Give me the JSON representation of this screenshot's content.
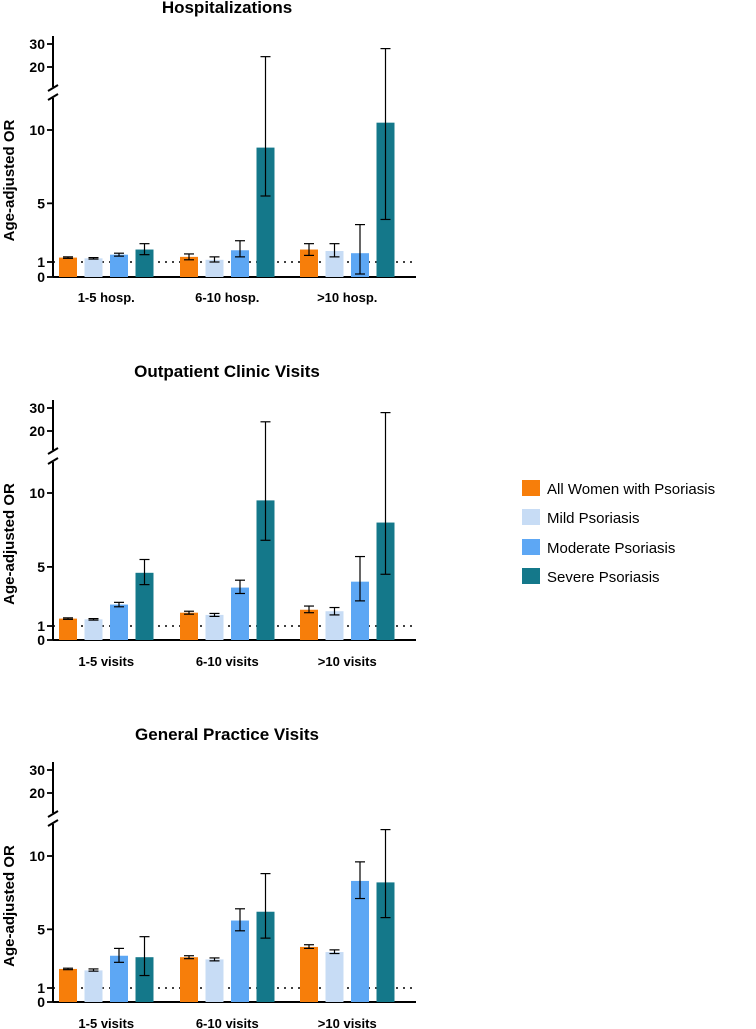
{
  "colors": {
    "all": "#f77e0a",
    "mild": "#c7dcf5",
    "moderate": "#5da7f4",
    "severe": "#14788a"
  },
  "legend": [
    {
      "key": "all",
      "label": "All Women with Psoriasis"
    },
    {
      "key": "mild",
      "label": "Mild Psoriasis"
    },
    {
      "key": "moderate",
      "label": "Moderate Psoriasis"
    },
    {
      "key": "severe",
      "label": "Severe Psoriasis"
    }
  ],
  "chart_data": [
    {
      "type": "bar",
      "title": "Hospitalizations",
      "ylabel": "Age-adjusted OR",
      "ylim": [
        0,
        30
      ],
      "axis_break": [
        12,
        20
      ],
      "yticks": [
        "0",
        "1",
        "5",
        "10",
        "20",
        "30"
      ],
      "reference_line": 1,
      "categories": [
        "1-5 hosp.",
        "6-10 hosp.",
        ">10 hosp."
      ],
      "series": [
        {
          "name": "All Women with Psoriasis",
          "colorKey": "all",
          "values": [
            1.3,
            1.35,
            1.85
          ],
          "err_low": [
            1.25,
            1.15,
            1.45
          ],
          "err_high": [
            1.35,
            1.55,
            2.25
          ]
        },
        {
          "name": "Mild Psoriasis",
          "colorKey": "mild",
          "values": [
            1.25,
            1.15,
            1.75
          ],
          "err_low": [
            1.2,
            1.0,
            1.35
          ],
          "err_high": [
            1.3,
            1.35,
            2.25
          ]
        },
        {
          "name": "Moderate Psoriasis",
          "colorKey": "moderate",
          "values": [
            1.5,
            1.8,
            1.6
          ],
          "err_low": [
            1.4,
            1.35,
            0.2
          ],
          "err_high": [
            1.6,
            2.45,
            3.55
          ]
        },
        {
          "name": "Severe Psoriasis",
          "colorKey": "severe",
          "values": [
            1.85,
            8.8,
            10.5
          ],
          "err_low": [
            1.5,
            5.5,
            3.9
          ],
          "err_high": [
            2.25,
            24.5,
            28.0
          ]
        }
      ]
    },
    {
      "type": "bar",
      "title": "Outpatient Clinic Visits",
      "ylabel": "Age-adjusted OR",
      "ylim": [
        0,
        30
      ],
      "axis_break": [
        12,
        20
      ],
      "yticks": [
        "0",
        "1",
        "5",
        "10",
        "20",
        "30"
      ],
      "reference_line": 1,
      "categories": [
        "1-5 visits",
        "6-10 visits",
        ">10 visits"
      ],
      "series": [
        {
          "name": "All Women with Psoriasis",
          "colorKey": "all",
          "values": [
            1.5,
            1.9,
            2.1
          ],
          "err_low": [
            1.45,
            1.8,
            1.9
          ],
          "err_high": [
            1.55,
            2.0,
            2.35
          ]
        },
        {
          "name": "Mild Psoriasis",
          "colorKey": "mild",
          "values": [
            1.45,
            1.75,
            2.0
          ],
          "err_low": [
            1.4,
            1.65,
            1.75
          ],
          "err_high": [
            1.5,
            1.85,
            2.25
          ]
        },
        {
          "name": "Moderate Psoriasis",
          "colorKey": "moderate",
          "values": [
            2.45,
            3.6,
            4.0
          ],
          "err_low": [
            2.3,
            3.2,
            2.7
          ],
          "err_high": [
            2.6,
            4.1,
            5.7
          ]
        },
        {
          "name": "Severe Psoriasis",
          "colorKey": "severe",
          "values": [
            4.6,
            9.5,
            8.0
          ],
          "err_low": [
            3.8,
            6.8,
            4.5
          ],
          "err_high": [
            5.5,
            24.0,
            28.0
          ]
        }
      ]
    },
    {
      "type": "bar",
      "title": "General Practice Visits",
      "ylabel": "Age-adjusted OR",
      "ylim": [
        0,
        30
      ],
      "axis_break": [
        12,
        20
      ],
      "yticks": [
        "0",
        "1",
        "5",
        "10",
        "20",
        "30"
      ],
      "reference_line": 1,
      "categories": [
        "1-5 visits",
        "6-10 visits",
        ">10 visits"
      ],
      "series": [
        {
          "name": "All Women with Psoriasis",
          "colorKey": "all",
          "values": [
            2.3,
            3.1,
            3.8
          ],
          "err_low": [
            2.25,
            3.0,
            3.7
          ],
          "err_high": [
            2.35,
            3.2,
            3.95
          ]
        },
        {
          "name": "Mild Psoriasis",
          "colorKey": "mild",
          "values": [
            2.2,
            2.95,
            3.45
          ],
          "err_low": [
            2.15,
            2.85,
            3.35
          ],
          "err_high": [
            2.3,
            3.05,
            3.6
          ]
        },
        {
          "name": "Moderate Psoriasis",
          "colorKey": "moderate",
          "values": [
            3.2,
            5.6,
            8.3
          ],
          "err_low": [
            2.75,
            4.9,
            7.1
          ],
          "err_high": [
            3.7,
            6.4,
            9.6
          ]
        },
        {
          "name": "Severe Psoriasis",
          "colorKey": "severe",
          "values": [
            3.1,
            6.2,
            8.2
          ],
          "err_low": [
            1.85,
            4.4,
            5.8
          ],
          "err_high": [
            4.5,
            8.8,
            11.8
          ]
        }
      ]
    }
  ]
}
